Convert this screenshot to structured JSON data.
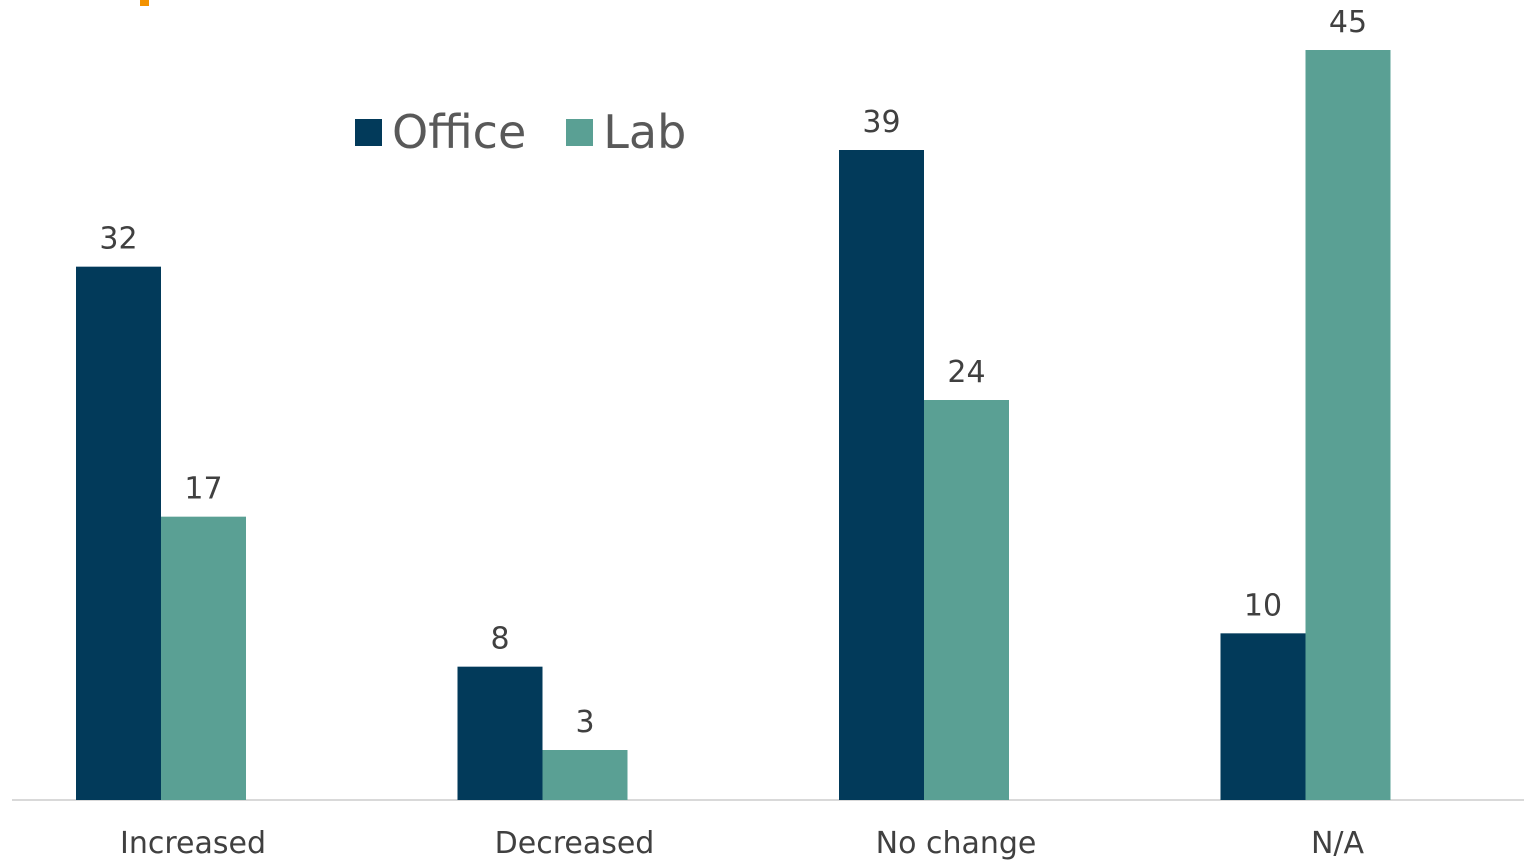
{
  "colors": {
    "office": "#023a5a",
    "lab": "#5aa094",
    "accent": "#f39200",
    "axis": "#d9d9d9"
  },
  "legend": {
    "items": [
      {
        "label": "Office",
        "color": "#023a5a"
      },
      {
        "label": "Lab",
        "color": "#5aa094"
      }
    ]
  },
  "chart_data": {
    "type": "bar",
    "categories": [
      "Increased",
      "Decreased",
      "No change",
      "N/A"
    ],
    "series": [
      {
        "name": "Office",
        "values": [
          32,
          8,
          39,
          10
        ],
        "color": "#023a5a"
      },
      {
        "name": "Lab",
        "values": [
          17,
          3,
          24,
          45
        ],
        "color": "#5aa094"
      }
    ],
    "ylim": [
      0,
      48
    ],
    "grid": false,
    "legend_position": "top"
  }
}
